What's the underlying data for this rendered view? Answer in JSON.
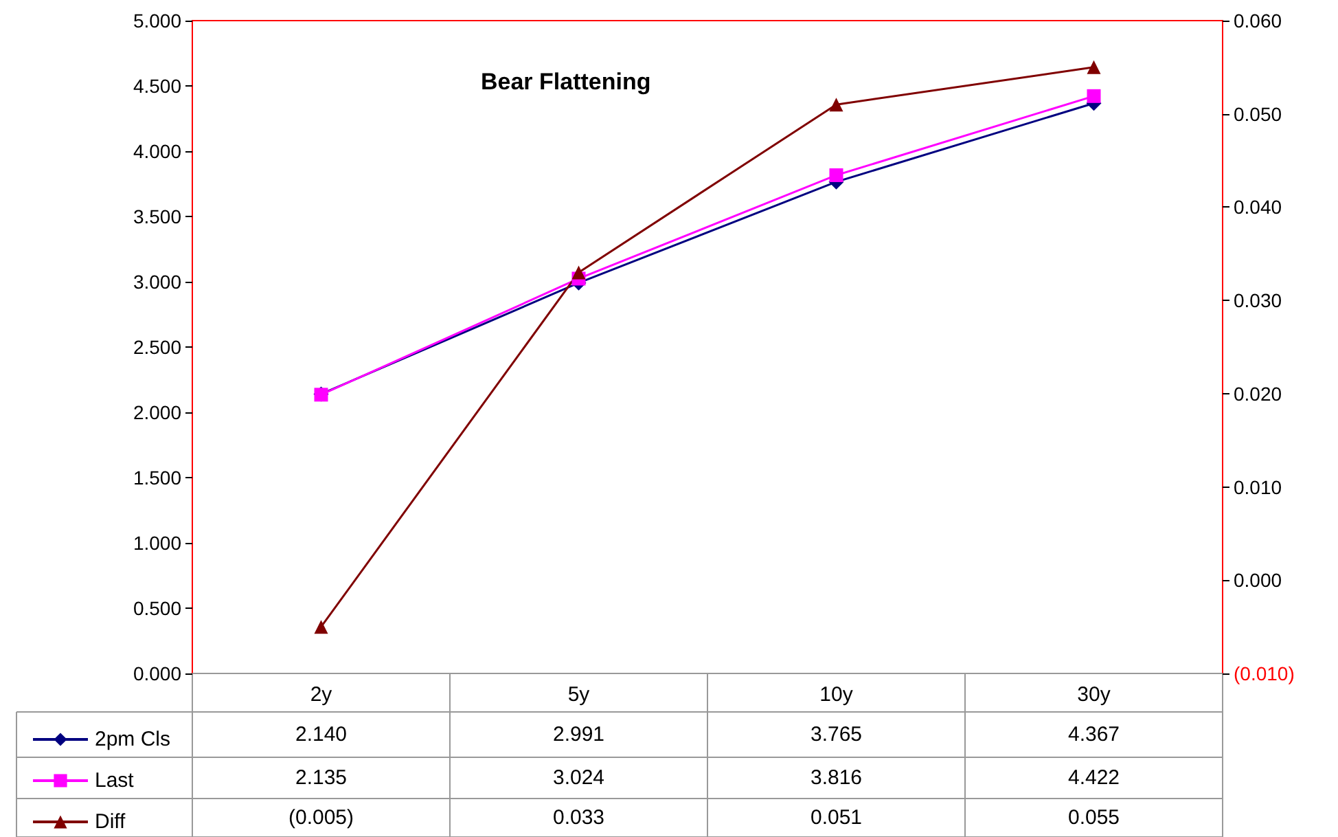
{
  "chart_data": {
    "type": "line",
    "title": "Bear Flattening",
    "categories": [
      "2y",
      "5y",
      "10y",
      "30y"
    ],
    "series": [
      {
        "name": "2pm Cls",
        "color": "#000080",
        "marker": "diamond",
        "values": [
          2.14,
          2.991,
          3.765,
          4.367
        ],
        "value_labels": [
          "2.140",
          "2.991",
          "3.765",
          "4.367"
        ]
      },
      {
        "name": "Last",
        "color": "#ff00ff",
        "marker": "square",
        "values": [
          2.135,
          3.024,
          3.816,
          4.422
        ],
        "value_labels": [
          "2.135",
          "3.024",
          "3.816",
          "4.422"
        ]
      },
      {
        "name": "Diff",
        "color": "#800000",
        "marker": "triangle",
        "axis": "y2",
        "values": [
          -0.005,
          0.033,
          0.051,
          0.055
        ],
        "value_labels": [
          "(0.005)",
          "0.033",
          "0.051",
          "0.055"
        ]
      }
    ],
    "ylim": [
      0,
      5
    ],
    "yticks": [
      {
        "value": 0,
        "label": "0.000"
      },
      {
        "value": 0.5,
        "label": "0.500"
      },
      {
        "value": 1,
        "label": "1.000"
      },
      {
        "value": 1.5,
        "label": "1.500"
      },
      {
        "value": 2,
        "label": "2.000"
      },
      {
        "value": 2.5,
        "label": "2.500"
      },
      {
        "value": 3,
        "label": "3.000"
      },
      {
        "value": 3.5,
        "label": "3.500"
      },
      {
        "value": 4,
        "label": "4.000"
      },
      {
        "value": 4.5,
        "label": "4.500"
      },
      {
        "value": 5,
        "label": "5.000"
      }
    ],
    "y2lim": [
      -0.01,
      0.06
    ],
    "y2ticks": [
      {
        "value": -0.01,
        "label": "(0.010)"
      },
      {
        "value": 0,
        "label": "0.000"
      },
      {
        "value": 0.01,
        "label": "0.010"
      },
      {
        "value": 0.02,
        "label": "0.020"
      },
      {
        "value": 0.03,
        "label": "0.030"
      },
      {
        "value": 0.04,
        "label": "0.040"
      },
      {
        "value": 0.05,
        "label": "0.050"
      },
      {
        "value": 0.06,
        "label": "0.060"
      }
    ],
    "grid": false,
    "legend": "bottom left",
    "line_style": "solid"
  }
}
